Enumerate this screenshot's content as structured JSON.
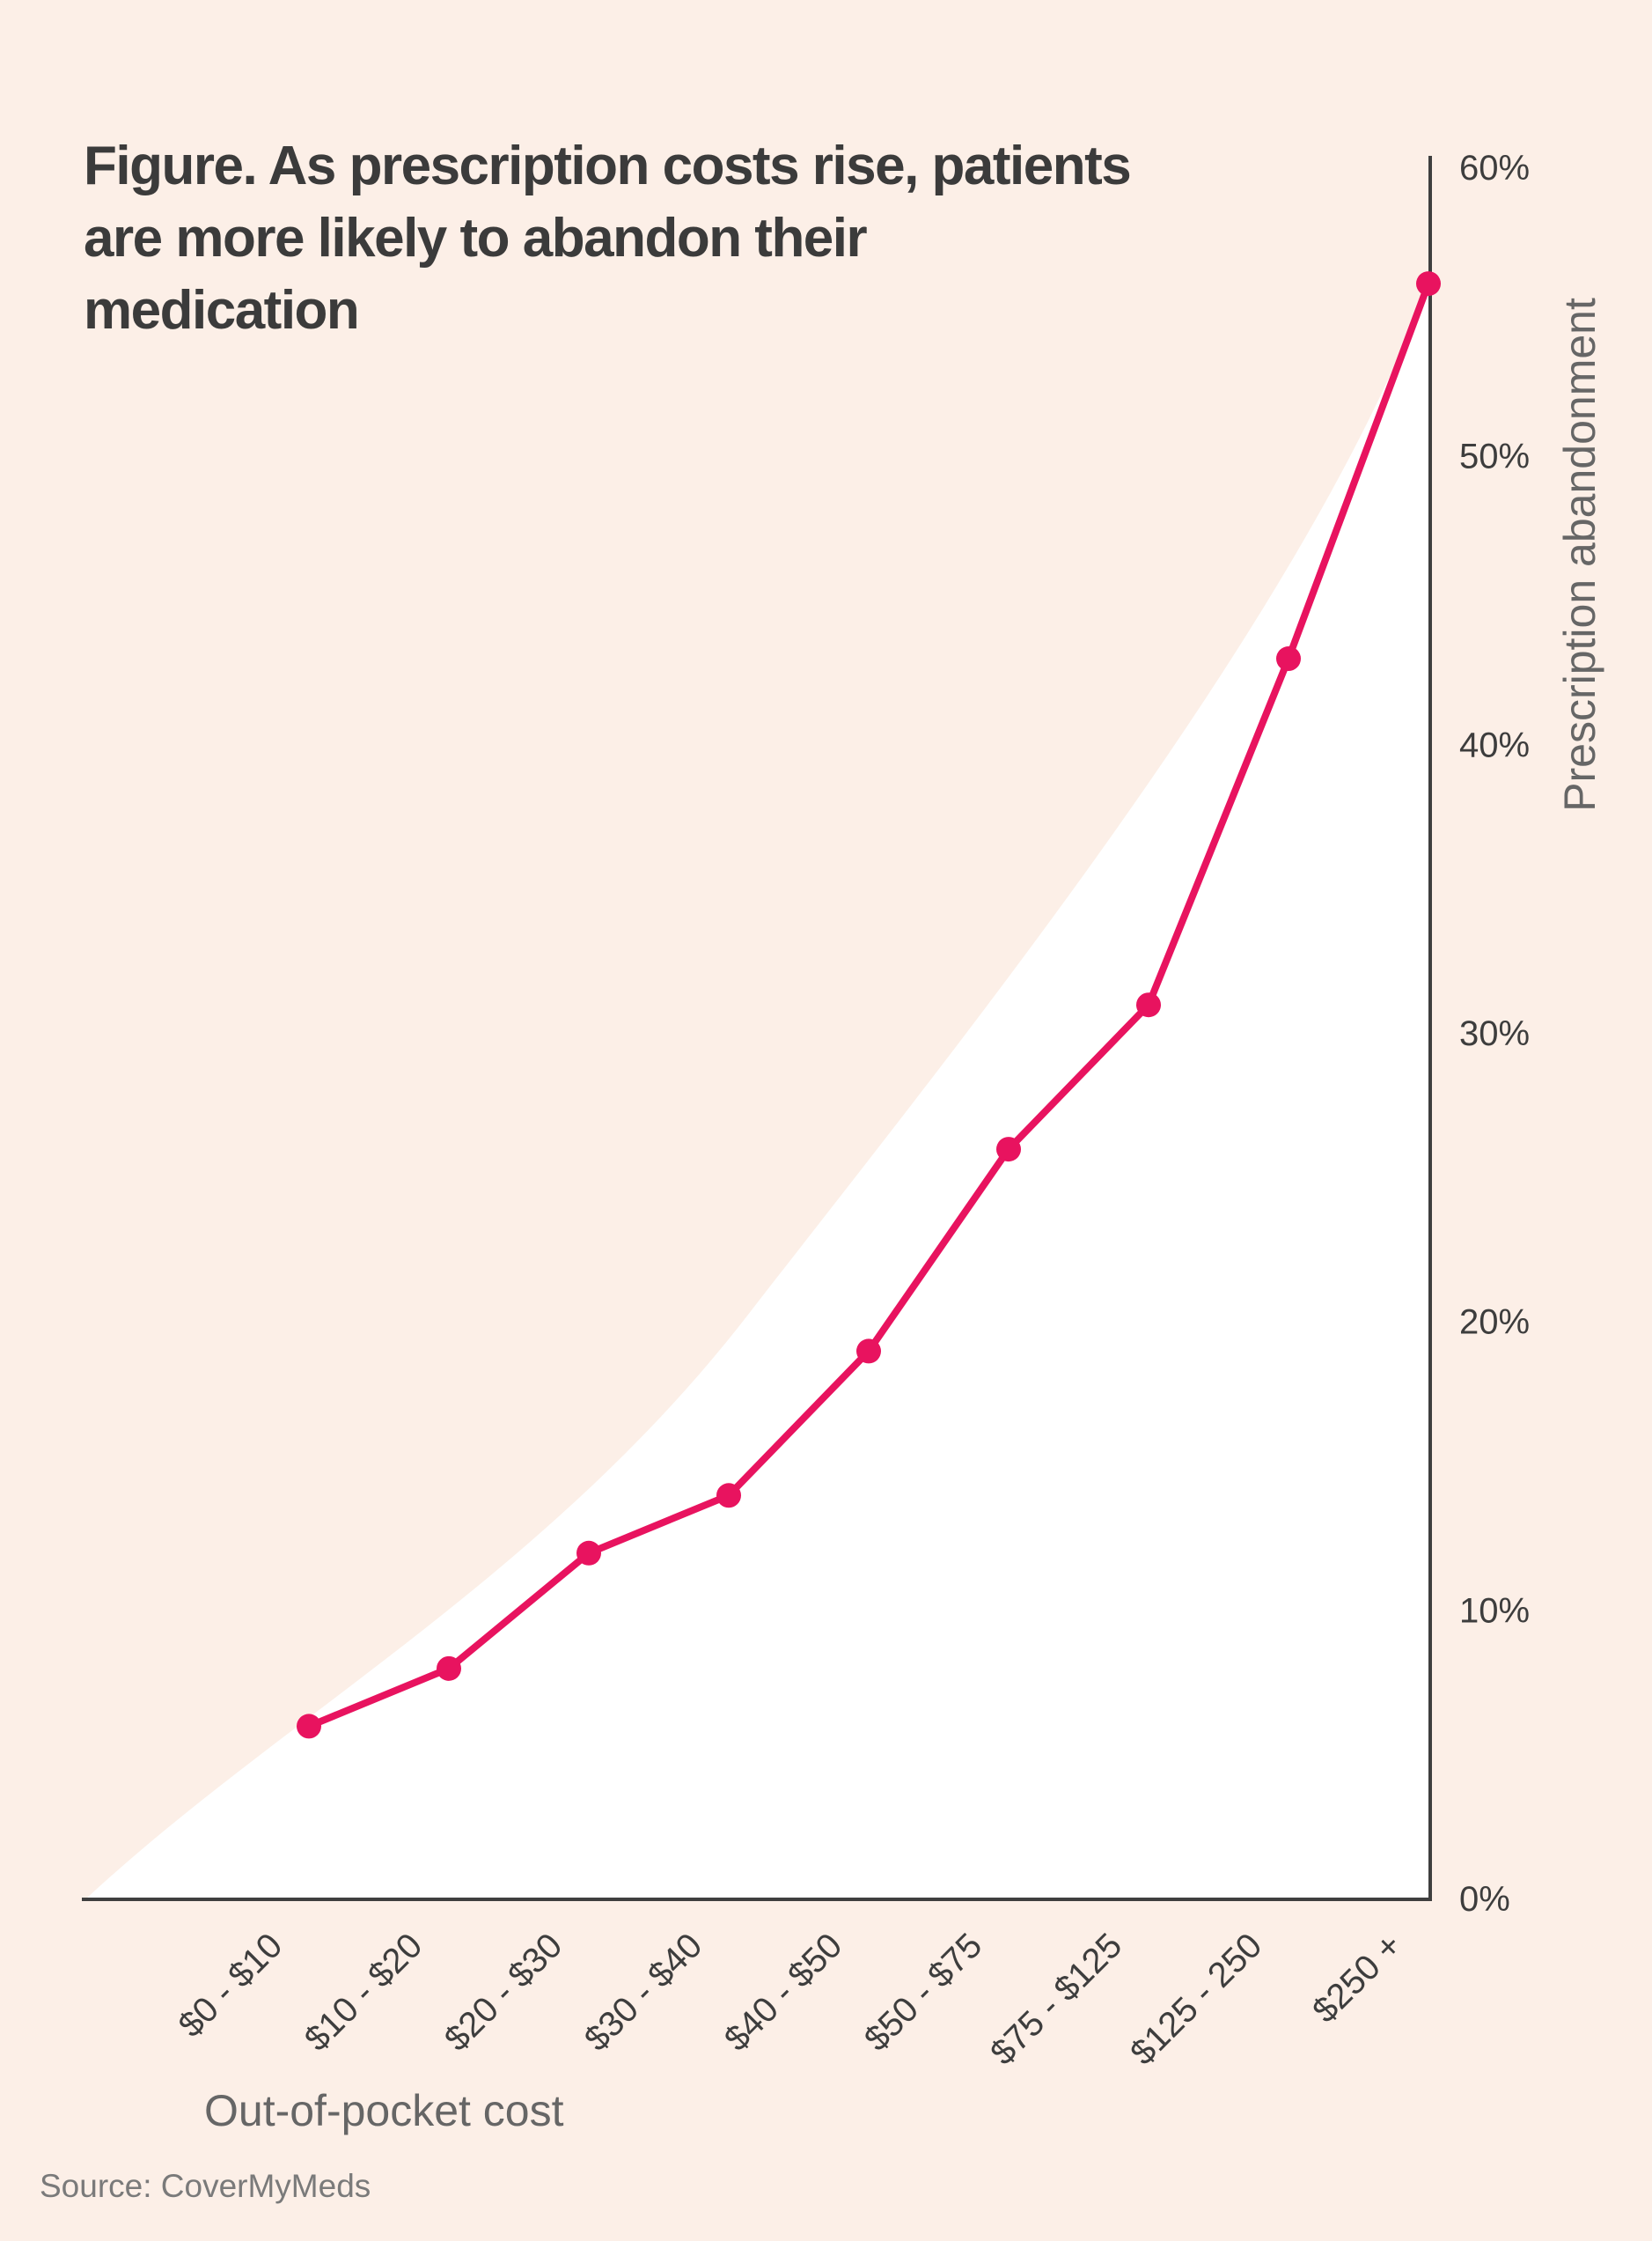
{
  "title": "Figure. As prescription costs rise, patients are more likely to abandon their medication",
  "source": "Source: CoverMyMeds",
  "colors": {
    "background": "#fcefe7",
    "plot_fill": "#ffffff",
    "line": "#e8135f",
    "marker": "#e8135f",
    "axis": "#3f3f3f",
    "tick_text": "#3d3d3d",
    "axis_title_text": "#666666",
    "title_text": "#3b3b3b",
    "source_text": "#7a7a7a"
  },
  "chart_data": {
    "type": "line",
    "title": "As prescription costs rise, patients are more likely to abandon their medication",
    "categories": [
      "$0 - $10",
      "$10 - $20",
      "$20 - $30",
      "$30 - $40",
      "$40 - $50",
      "$50 - $75",
      "$75 - $125",
      "$125 - 250",
      "$250 +"
    ],
    "values": [
      6,
      8,
      12,
      14,
      19,
      26,
      31,
      43,
      56
    ],
    "unit": "%",
    "series_name": "Prescription abandonment rate",
    "xlabel": "Out-of-pocket cost",
    "ylabel": "Prescription abandonment",
    "ylim": [
      0,
      60
    ],
    "ytick_step": 10,
    "yticks": [
      "0%",
      "10%",
      "20%",
      "30%",
      "40%",
      "50%",
      "60%"
    ],
    "grid": false,
    "legend": "none",
    "marker": "circle",
    "y_axis_side": "right",
    "x_tick_rotation": 45
  }
}
